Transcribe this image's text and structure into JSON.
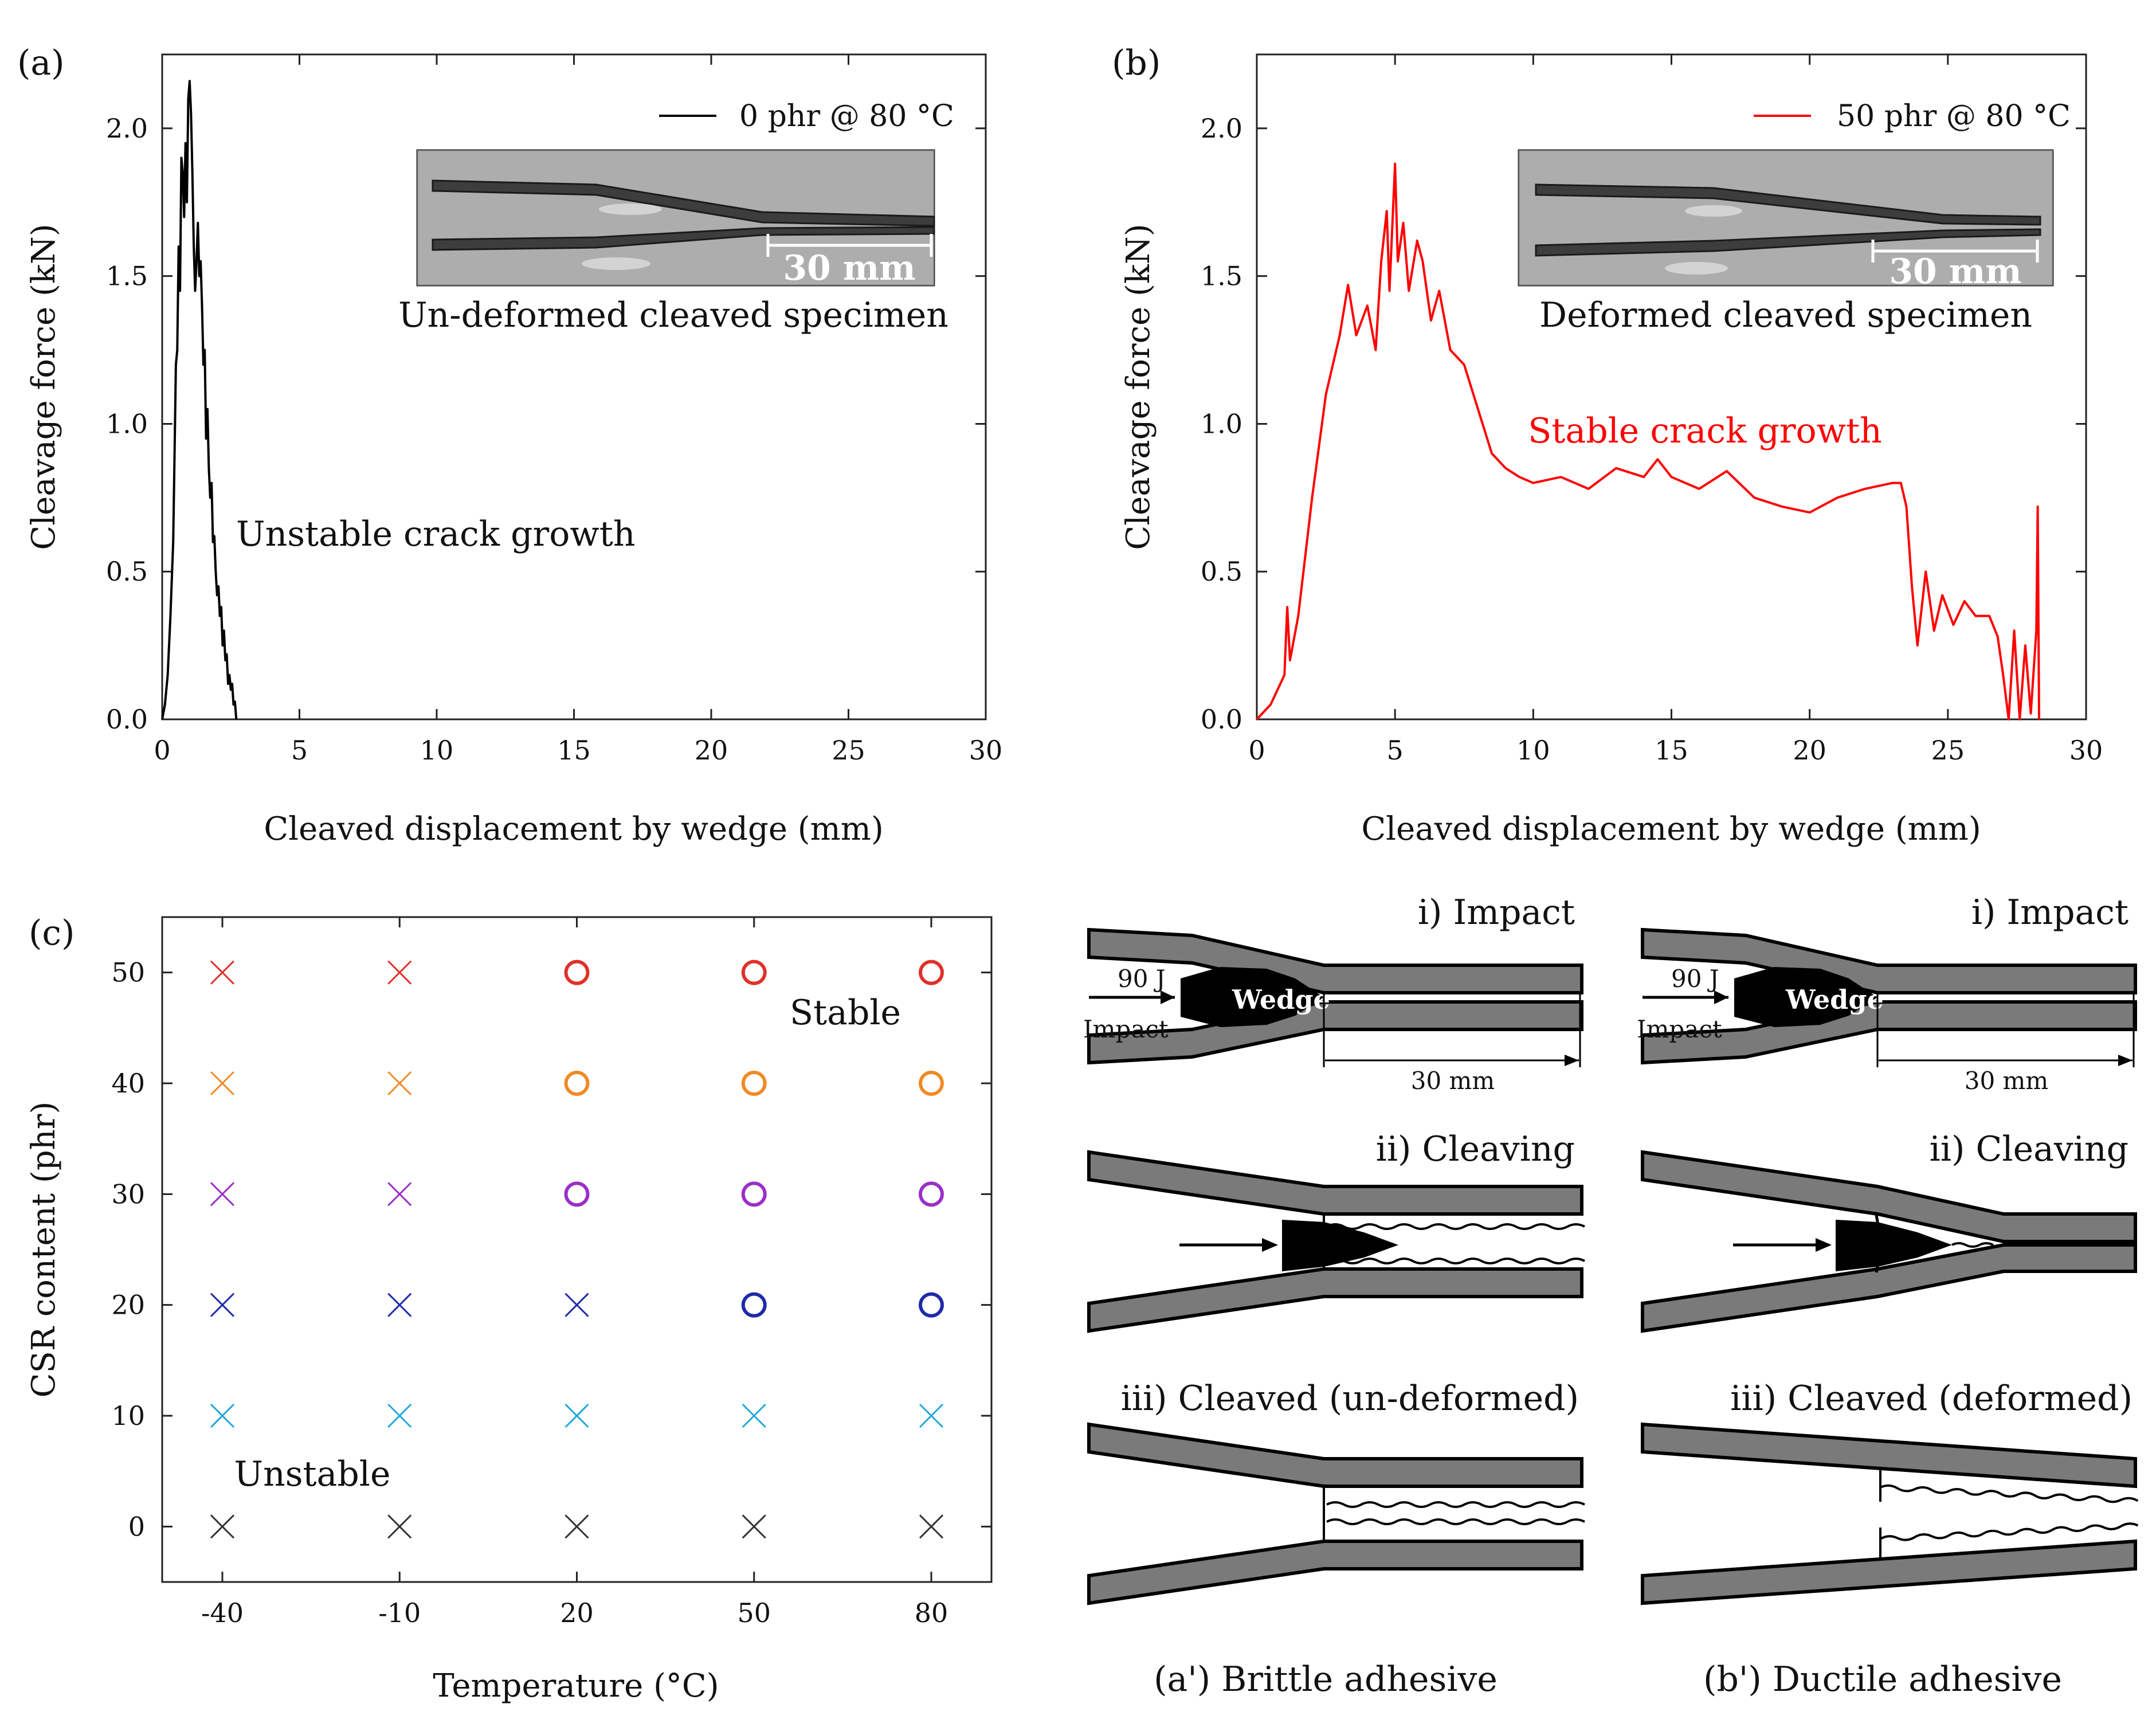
{
  "chart_data": [
    {
      "id": "a",
      "type": "line",
      "panel_label": "(a)",
      "xlabel": "Cleaved displacement by wedge (mm)",
      "ylabel": "Cleavage force (kN)",
      "xlim": [
        0,
        30
      ],
      "ylim": [
        0,
        2.25
      ],
      "xticks": [
        0,
        5,
        10,
        15,
        20,
        25,
        30
      ],
      "yticks": [
        0.0,
        0.5,
        1.0,
        1.5,
        2.0
      ],
      "xtick_labels": [
        "0",
        "5",
        "10",
        "15",
        "20",
        "25",
        "30"
      ],
      "ytick_labels": [
        "0.0",
        "0.5",
        "1.0",
        "1.5",
        "2.0"
      ],
      "series": [
        {
          "name": "0 phr @ 80 °C",
          "color": "#000000",
          "x": [
            0,
            0.1,
            0.2,
            0.3,
            0.4,
            0.45,
            0.5,
            0.55,
            0.6,
            0.65,
            0.7,
            0.75,
            0.8,
            0.85,
            0.9,
            0.95,
            1.0,
            1.05,
            1.1,
            1.15,
            1.2,
            1.25,
            1.3,
            1.35,
            1.4,
            1.45,
            1.5,
            1.55,
            1.6,
            1.65,
            1.7,
            1.75,
            1.8,
            1.85,
            1.9,
            1.95,
            2.0,
            2.05,
            2.1,
            2.15,
            2.2,
            2.25,
            2.3,
            2.35,
            2.4,
            2.45,
            2.5,
            2.55,
            2.6,
            2.65,
            2.7
          ],
          "y": [
            0.0,
            0.05,
            0.15,
            0.35,
            0.6,
            0.9,
            1.2,
            1.25,
            1.6,
            1.45,
            1.9,
            1.85,
            1.7,
            1.95,
            1.75,
            2.1,
            2.16,
            2.05,
            1.85,
            1.6,
            1.45,
            1.55,
            1.68,
            1.5,
            1.55,
            1.4,
            1.2,
            1.25,
            0.95,
            1.05,
            0.85,
            0.75,
            0.8,
            0.6,
            0.62,
            0.5,
            0.42,
            0.45,
            0.35,
            0.38,
            0.25,
            0.3,
            0.2,
            0.22,
            0.12,
            0.15,
            0.1,
            0.12,
            0.05,
            0.06,
            0.0
          ]
        }
      ],
      "legend_position": "top-right",
      "annotations": [
        "Unstable crack growth"
      ],
      "inset_caption": "Un-deformed cleaved specimen",
      "inset_scale": "30 mm"
    },
    {
      "id": "b",
      "type": "line",
      "panel_label": "(b)",
      "xlabel": "Cleaved displacement by wedge (mm)",
      "ylabel": "Cleavage force (kN)",
      "xlim": [
        0,
        30
      ],
      "ylim": [
        0,
        2.25
      ],
      "xticks": [
        0,
        5,
        10,
        15,
        20,
        25,
        30
      ],
      "yticks": [
        0.0,
        0.5,
        1.0,
        1.5,
        2.0
      ],
      "xtick_labels": [
        "0",
        "5",
        "10",
        "15",
        "20",
        "25",
        "30"
      ],
      "ytick_labels": [
        "0.0",
        "0.5",
        "1.0",
        "1.5",
        "2.0"
      ],
      "series": [
        {
          "name": "50 phr @ 80 °C",
          "color": "#ff0000",
          "x": [
            0,
            0.5,
            1.0,
            1.1,
            1.2,
            1.5,
            2.0,
            2.5,
            3.0,
            3.3,
            3.6,
            4.0,
            4.3,
            4.5,
            4.7,
            4.8,
            5.0,
            5.1,
            5.3,
            5.5,
            5.8,
            6.0,
            6.3,
            6.6,
            7.0,
            7.5,
            8.0,
            8.5,
            9.0,
            9.5,
            10.0,
            11.0,
            12.0,
            13.0,
            14.0,
            14.5,
            15.0,
            16.0,
            17.0,
            18.0,
            19.0,
            20.0,
            21.0,
            22.0,
            23.0,
            23.3,
            23.5,
            23.7,
            23.9,
            24.2,
            24.5,
            24.8,
            25.2,
            25.6,
            26.0,
            26.5,
            26.8,
            27.0,
            27.2,
            27.4,
            27.6,
            27.8,
            28.0,
            28.2,
            28.25,
            28.3
          ],
          "y": [
            0.0,
            0.05,
            0.15,
            0.38,
            0.2,
            0.35,
            0.75,
            1.1,
            1.3,
            1.47,
            1.3,
            1.4,
            1.25,
            1.55,
            1.72,
            1.45,
            1.88,
            1.55,
            1.68,
            1.45,
            1.62,
            1.55,
            1.35,
            1.45,
            1.25,
            1.2,
            1.05,
            0.9,
            0.85,
            0.82,
            0.8,
            0.82,
            0.78,
            0.85,
            0.82,
            0.88,
            0.82,
            0.78,
            0.84,
            0.75,
            0.72,
            0.7,
            0.75,
            0.78,
            0.8,
            0.8,
            0.72,
            0.45,
            0.25,
            0.5,
            0.3,
            0.42,
            0.32,
            0.4,
            0.35,
            0.35,
            0.28,
            0.15,
            0.0,
            0.3,
            0.0,
            0.25,
            0.02,
            0.3,
            0.72,
            0.0
          ]
        }
      ],
      "legend_position": "top-right",
      "annotations": [
        "Stable crack growth"
      ],
      "inset_caption": "Deformed cleaved specimen",
      "inset_scale": "30 mm"
    },
    {
      "id": "c",
      "type": "scatter",
      "panel_label": "(c)",
      "xlabel": "Temperature (°C)",
      "ylabel": "CSR content (phr)",
      "categories": [
        "-40",
        "-10",
        "20",
        "50",
        "80"
      ],
      "yticks": [
        0,
        10,
        20,
        30,
        40,
        50
      ],
      "ytick_labels": [
        "0",
        "10",
        "20",
        "30",
        "40",
        "50"
      ],
      "ylim": [
        -5,
        55
      ],
      "annotations": [
        "Stable",
        "Unstable"
      ],
      "series": [
        {
          "name": "50 phr",
          "value": 50,
          "color": "#e0302a",
          "markers": [
            "x",
            "x",
            "o",
            "o",
            "o"
          ]
        },
        {
          "name": "40 phr",
          "value": 40,
          "color": "#f08a24",
          "markers": [
            "x",
            "x",
            "o",
            "o",
            "o"
          ]
        },
        {
          "name": "30 phr",
          "value": 30,
          "color": "#9a2fc7",
          "markers": [
            "x",
            "x",
            "o",
            "o",
            "o"
          ]
        },
        {
          "name": "20 phr",
          "value": 20,
          "color": "#1e2aa8",
          "markers": [
            "x",
            "x",
            "x",
            "o",
            "o"
          ]
        },
        {
          "name": "10 phr",
          "value": 10,
          "color": "#1ea8d8",
          "markers": [
            "x",
            "x",
            "x",
            "x",
            "x"
          ]
        },
        {
          "name": "0 phr",
          "value": 0,
          "color": "#333333",
          "markers": [
            "x",
            "x",
            "x",
            "x",
            "x"
          ]
        }
      ]
    }
  ],
  "schematics": {
    "left_caption": "(a') Brittle adhesive",
    "right_caption": "(b') Ductile adhesive",
    "impact_label": "i) Impact",
    "cleaving_label": "ii) Cleaving",
    "left_cleaved_label": "iii) Cleaved (un-deformed)",
    "right_cleaved_label": "iii) Cleaved (deformed)",
    "energy_label": "90 J",
    "impact_word": "Impact",
    "wedge_label": "Wedge",
    "length_label": "30 mm"
  }
}
